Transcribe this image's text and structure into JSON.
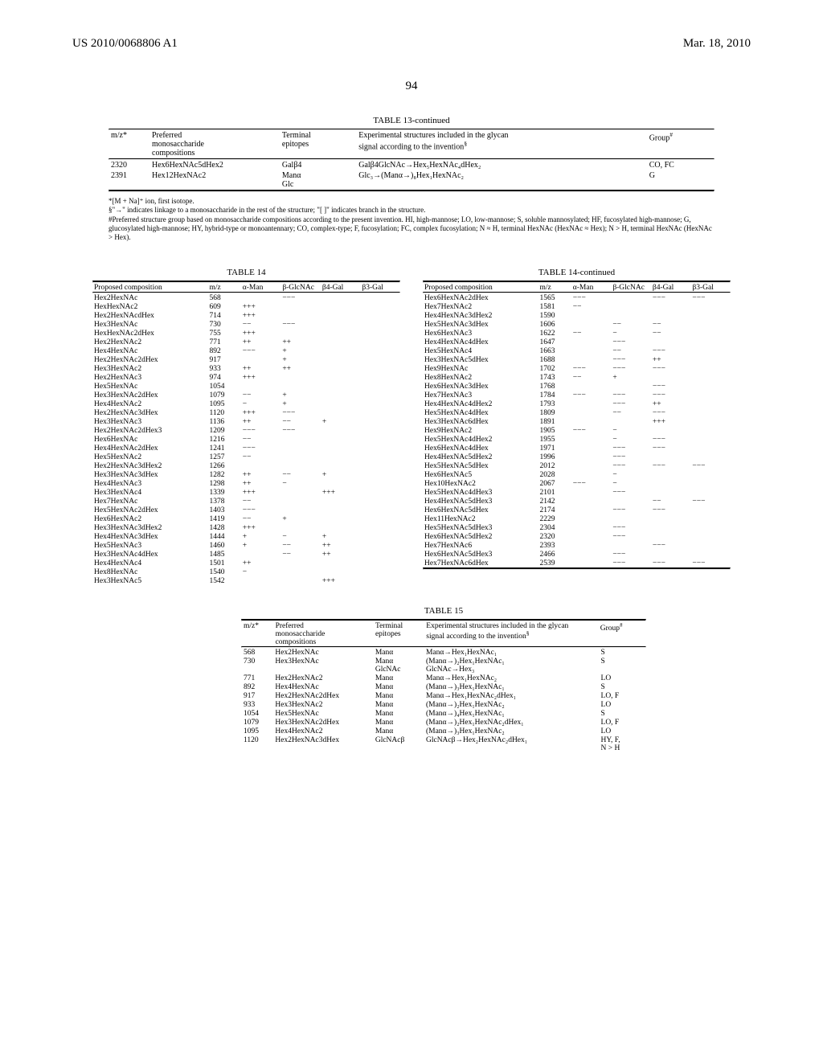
{
  "header": {
    "left": "US 2010/0068806 A1",
    "right": "Mar. 18, 2010"
  },
  "page_number": "94",
  "table13": {
    "title": "TABLE 13-continued",
    "cols": [
      "m/z*",
      "Preferred monosaccharide compositions",
      "Terminal epitopes",
      "Experimental structures included in the glycan signal according to the invention§",
      "Group#"
    ],
    "rows": [
      {
        "mz": "2320",
        "comp": "Hex6HexNAc5dHex2",
        "epi": "Galβ4",
        "struct": "Galβ4GlcNAc→Hex₅HexNAc₄dHex₂",
        "grp": "CO, FC"
      },
      {
        "mz": "2391",
        "comp": "Hex12HexNAc2",
        "epi": "Manα\nGlc",
        "struct": "Glc₃→(Manα→)₈Hex₁HexNAc₂",
        "grp": "G"
      }
    ],
    "footnotes": [
      "*[M + Na]⁺ ion, first isotope.",
      "§\"→\" indicates linkage to a monosaccharide in the rest of the structure; \"[ ]\" indicates branch in the structure.",
      "#Preferred structure group based on monosaccharide compositions according to the present invention. HI, high-mannose; LO, low-mannose; S, soluble mannosylated; HF, fucosylated high-mannose; G, glucosylated high-mannose; HY, hybrid-type or monoantennary; CO, complex-type; F, fucosylation; FC, complex fucosylation; N ≈ H, terminal HexNAc (HexNAc ≈ Hex); N > H, terminal HexNAc (HexNAc > Hex)."
    ]
  },
  "table14": {
    "title_left": "TABLE 14",
    "title_right": "TABLE 14-continued",
    "cols": [
      "Proposed composition",
      "m/z",
      "α-Man",
      "β-GlcNAc",
      "β4-Gal",
      "β3-Gal"
    ],
    "left_rows": [
      [
        "Hex2HexNAc",
        "568",
        "",
        "−−−",
        "",
        ""
      ],
      [
        "HexHexNAc2",
        "609",
        "+++",
        "",
        "",
        ""
      ],
      [
        "Hex2HexNAcdHex",
        "714",
        "+++",
        "",
        "",
        ""
      ],
      [
        "Hex3HexNAc",
        "730",
        "−−",
        "−−−",
        "",
        ""
      ],
      [
        "HexHexNAc2dHex",
        "755",
        "+++",
        "",
        "",
        ""
      ],
      [
        "Hex2HexNAc2",
        "771",
        "++",
        "++",
        "",
        ""
      ],
      [
        "Hex4HexNAc",
        "892",
        "−−−",
        "+",
        "",
        ""
      ],
      [
        "Hex2HexNAc2dHex",
        "917",
        "",
        "+",
        "",
        ""
      ],
      [
        "Hex3HexNAc2",
        "933",
        "++",
        "++",
        "",
        ""
      ],
      [
        "Hex2HexNAc3",
        "974",
        "+++",
        "",
        "",
        ""
      ],
      [
        "Hex5HexNAc",
        "1054",
        "",
        "",
        "",
        ""
      ],
      [
        "Hex3HexNAc2dHex",
        "1079",
        "−−",
        "+",
        "",
        ""
      ],
      [
        "Hex4HexNAc2",
        "1095",
        "−",
        "+",
        "",
        ""
      ],
      [
        "Hex2HexNAc3dHex",
        "1120",
        "+++",
        "−−−",
        "",
        ""
      ],
      [
        "Hex3HexNAc3",
        "1136",
        "++",
        "−−",
        "+",
        ""
      ],
      [
        "Hex2HexNAc2dHex3",
        "1209",
        "−−−",
        "−−−",
        "",
        ""
      ],
      [
        "Hex6HexNAc",
        "1216",
        "−−",
        "",
        "",
        ""
      ],
      [
        "Hex4HexNAc2dHex",
        "1241",
        "−−−",
        "",
        "",
        ""
      ],
      [
        "Hex5HexNAc2",
        "1257",
        "−−",
        "",
        "",
        ""
      ],
      [
        "Hex2HexNAc3dHex2",
        "1266",
        "",
        "",
        "",
        ""
      ],
      [
        "Hex3HexNAc3dHex",
        "1282",
        "++",
        "−−",
        "+",
        ""
      ],
      [
        "Hex4HexNAc3",
        "1298",
        "++",
        "−",
        "",
        ""
      ],
      [
        "Hex3HexNAc4",
        "1339",
        "+++",
        "",
        "+++",
        ""
      ],
      [
        "Hex7HexNAc",
        "1378",
        "−−",
        "",
        "",
        ""
      ],
      [
        "Hex5HexNAc2dHex",
        "1403",
        "−−−",
        "",
        "",
        ""
      ],
      [
        "Hex6HexNAc2",
        "1419",
        "−−",
        "+",
        "",
        ""
      ],
      [
        "Hex3HexNAc3dHex2",
        "1428",
        "+++",
        "",
        "",
        ""
      ],
      [
        "Hex4HexNAc3dHex",
        "1444",
        "+",
        "−",
        "+",
        ""
      ],
      [
        "Hex5HexNAc3",
        "1460",
        "+",
        "−−",
        "++",
        ""
      ],
      [
        "Hex3HexNAc4dHex",
        "1485",
        "",
        "−−",
        "++",
        ""
      ],
      [
        "Hex4HexNAc4",
        "1501",
        "++",
        "",
        "",
        ""
      ],
      [
        "Hex8HexNAc",
        "1540",
        "−",
        "",
        "",
        ""
      ],
      [
        "Hex3HexNAc5",
        "1542",
        "",
        "",
        "+++",
        ""
      ]
    ],
    "right_rows": [
      [
        "Hex6HexNAc2dHex",
        "1565",
        "−−−",
        "",
        "−−−",
        "−−−"
      ],
      [
        "Hex7HexNAc2",
        "1581",
        "−−",
        "",
        "",
        ""
      ],
      [
        "Hex4HexNAc3dHex2",
        "1590",
        "",
        "",
        "",
        ""
      ],
      [
        "Hex5HexNAc3dHex",
        "1606",
        "",
        "−−",
        "−−",
        ""
      ],
      [
        "Hex6HexNAc3",
        "1622",
        "−−",
        "−",
        "−−",
        ""
      ],
      [
        "Hex4HexNAc4dHex",
        "1647",
        "",
        "−−−",
        "",
        ""
      ],
      [
        "Hex5HexNAc4",
        "1663",
        "",
        "−−",
        "−−−",
        ""
      ],
      [
        "Hex3HexNAc5dHex",
        "1688",
        "",
        "−−−",
        "++",
        ""
      ],
      [
        "Hex9HexNAc",
        "1702",
        "−−−",
        "−−−",
        "−−−",
        ""
      ],
      [
        "Hex8HexNAc2",
        "1743",
        "−−",
        "+",
        "",
        ""
      ],
      [
        "Hex6HexNAc3dHex",
        "1768",
        "",
        "",
        "−−−",
        ""
      ],
      [
        "Hex7HexNAc3",
        "1784",
        "−−−",
        "−−−",
        "−−−",
        ""
      ],
      [
        "Hex4HexNAc4dHex2",
        "1793",
        "",
        "−−−",
        "++",
        ""
      ],
      [
        "Hex5HexNAc4dHex",
        "1809",
        "",
        "−−",
        "−−−",
        ""
      ],
      [
        "Hex3HexNAc6dHex",
        "1891",
        "",
        "",
        "+++",
        ""
      ],
      [
        "Hex9HexNAc2",
        "1905",
        "−−−",
        "−",
        "",
        ""
      ],
      [
        "Hex5HexNAc4dHex2",
        "1955",
        "",
        "−",
        "−−−",
        ""
      ],
      [
        "Hex6HexNAc4dHex",
        "1971",
        "",
        "−−−",
        "−−−",
        ""
      ],
      [
        "Hex4HexNAc5dHex2",
        "1996",
        "",
        "−−−",
        "",
        ""
      ],
      [
        "Hex5HexNAc5dHex",
        "2012",
        "",
        "−−−",
        "−−−",
        "−−−"
      ],
      [
        "Hex6HexNAc5",
        "2028",
        "",
        "−",
        "",
        ""
      ],
      [
        "Hex10HexNAc2",
        "2067",
        "−−−",
        "−",
        "",
        ""
      ],
      [
        "Hex5HexNAc4dHex3",
        "2101",
        "",
        "−−−",
        "",
        ""
      ],
      [
        "Hex4HexNAc5dHex3",
        "2142",
        "",
        "",
        "−−",
        "−−−"
      ],
      [
        "Hex6HexNAc5dHex",
        "2174",
        "",
        "−−−",
        "−−−",
        ""
      ],
      [
        "Hex11HexNAc2",
        "2229",
        "",
        "",
        "",
        ""
      ],
      [
        "Hex5HexNAc5dHex3",
        "2304",
        "",
        "−−−",
        "",
        ""
      ],
      [
        "Hex6HexNAc5dHex2",
        "2320",
        "",
        "−−−",
        "",
        ""
      ],
      [
        "Hex7HexNAc6",
        "2393",
        "",
        "",
        "−−−",
        ""
      ],
      [
        "Hex6HexNAc5dHex3",
        "2466",
        "",
        "−−−",
        "",
        ""
      ],
      [
        "Hex7HexNAc6dHex",
        "2539",
        "",
        "−−−",
        "−−−",
        "−−−"
      ]
    ]
  },
  "table15": {
    "title": "TABLE 15",
    "cols": [
      "m/z*",
      "Preferred monosaccharide compositions",
      "Terminal epitopes",
      "Experimental structures included in the glycan signal according to the invention§",
      "Group#"
    ],
    "rows": [
      {
        "mz": "568",
        "comp": "Hex2HexNAc",
        "epi": "Manα",
        "struct": "Manα→Hex₁HexNAc₁",
        "grp": "S"
      },
      {
        "mz": "730",
        "comp": "Hex3HexNAc",
        "epi": "Manα\nGlcNAc",
        "struct": "(Manα→)₂Hex₁HexNAc₁\nGlcNAc→Hex₃",
        "grp": "S"
      },
      {
        "mz": "771",
        "comp": "Hex2HexNAc2",
        "epi": "Manα",
        "struct": "Manα→Hex₁HexNAc₂",
        "grp": "LO"
      },
      {
        "mz": "892",
        "comp": "Hex4HexNAc",
        "epi": "Manα",
        "struct": "(Manα→)₃Hex₁HexNAc₁",
        "grp": "S"
      },
      {
        "mz": "917",
        "comp": "Hex2HexNAc2dHex",
        "epi": "Manα",
        "struct": "Manα→Hex₁HexNAc₂dHex₁",
        "grp": "LO, F"
      },
      {
        "mz": "933",
        "comp": "Hex3HexNAc2",
        "epi": "Manα",
        "struct": "(Manα→)₂Hex₁HexNAc₂",
        "grp": "LO"
      },
      {
        "mz": "1054",
        "comp": "Hex5HexNAc",
        "epi": "Manα",
        "struct": "(Manα→)₄Hex₁HexNAc₁",
        "grp": "S"
      },
      {
        "mz": "1079",
        "comp": "Hex3HexNAc2dHex",
        "epi": "Manα",
        "struct": "(Manα→)₂Hex₁HexNAc₂dHex₁",
        "grp": "LO, F"
      },
      {
        "mz": "1095",
        "comp": "Hex4HexNAc2",
        "epi": "Manα",
        "struct": "(Manα→)₃Hex₁HexNAc₂",
        "grp": "LO"
      },
      {
        "mz": "1120",
        "comp": "Hex2HexNAc3dHex",
        "epi": "GlcNAcβ",
        "struct": "GlcNAcβ→Hex₂HexNAc₂dHex₁",
        "grp": "HY, F,\nN > H"
      }
    ]
  }
}
